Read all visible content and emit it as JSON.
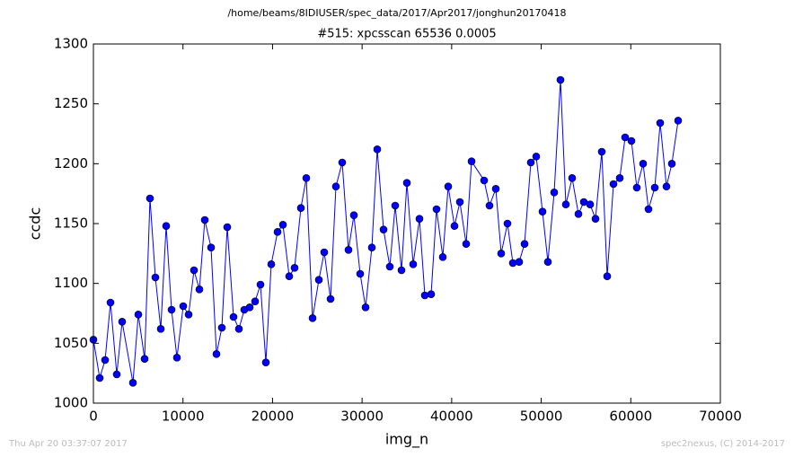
{
  "header": "/home/beams/8IDIUSER/spec_data/2017/Apr2017/jonghun20170418",
  "footer_left": "Thu Apr 20 03:37:07 2017",
  "footer_right": "spec2nexus, (C) 2014-2017",
  "chart_data": {
    "type": "line",
    "title": "#515: xpcsscan 65536 0.0005",
    "x_label": "img_n",
    "y_label": "ccdc",
    "xlim": [
      0,
      70000
    ],
    "ylim": [
      1000,
      1300
    ],
    "xticks": [
      0,
      10000,
      20000,
      30000,
      40000,
      50000,
      60000,
      70000
    ],
    "yticks": [
      1000,
      1050,
      1100,
      1150,
      1200,
      1250,
      1300
    ],
    "x": [
      0,
      702,
      1304,
      1906,
      2608,
      3209,
      4413,
      5014,
      5717,
      6318,
      6920,
      7521,
      8123,
      8725,
      9327,
      10029,
      10630,
      11232,
      11834,
      12436,
      13138,
      13739,
      14341,
      14943,
      15645,
      16246,
      16848,
      17450,
      18052,
      18653,
      19255,
      19857,
      20559,
      21160,
      21862,
      22464,
      23166,
      23768,
      24470,
      25172,
      25774,
      26476,
      27077,
      27779,
      28481,
      29083,
      29785,
      30387,
      31089,
      31691,
      32393,
      33095,
      33696,
      34398,
      35000,
      35702,
      36404,
      37006,
      37708,
      38309,
      39011,
      39613,
      40315,
      40917,
      41619,
      42221,
      43625,
      44226,
      44928,
      45530,
      46232,
      46834,
      47536,
      48138,
      48840,
      49441,
      50143,
      50745,
      51447,
      52149,
      52751,
      53453,
      54155,
      54756,
      55458,
      56060,
      56762,
      57364,
      58066,
      58768,
      59370,
      60072,
      60673,
      61375,
      61977,
      62679,
      63281,
      63983,
      64585,
      65287
    ],
    "series": [
      {
        "color": "#0000ff",
        "values": [
          1053,
          1021,
          1036,
          1084,
          1024,
          1068,
          1017,
          1074,
          1037,
          1171,
          1105,
          1062,
          1148,
          1078,
          1038,
          1081,
          1074,
          1111,
          1095,
          1153,
          1130,
          1041,
          1063,
          1147,
          1072,
          1062,
          1078,
          1080,
          1085,
          1099,
          1034,
          1116,
          1143,
          1149,
          1106,
          1113,
          1163,
          1188,
          1071,
          1103,
          1126,
          1087,
          1181,
          1201,
          1128,
          1157,
          1108,
          1080,
          1130,
          1212,
          1145,
          1114,
          1165,
          1111,
          1184,
          1116,
          1154,
          1090,
          1091,
          1162,
          1122,
          1181,
          1148,
          1168,
          1133,
          1202,
          1186,
          1165,
          1179,
          1125,
          1150,
          1117,
          1118,
          1133,
          1201,
          1206,
          1160,
          1118,
          1176,
          1270,
          1166,
          1188,
          1158,
          1168,
          1166,
          1154,
          1210,
          1106,
          1183,
          1188,
          1222,
          1219,
          1180,
          1200,
          1162,
          1180,
          1234,
          1181,
          1200,
          1236
        ]
      }
    ]
  }
}
